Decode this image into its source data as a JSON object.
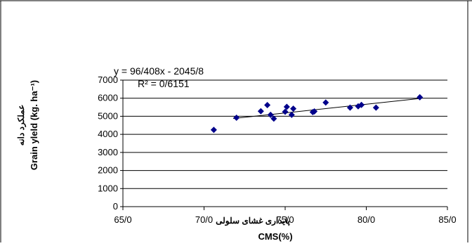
{
  "chart_data": {
    "type": "scatter",
    "x_axis": {
      "min": 65,
      "max": 85,
      "ticks": [
        65,
        70,
        75,
        80,
        85
      ],
      "tick_labels": [
        "65/0",
        "70/0",
        "75/0",
        "80/0",
        "85/0"
      ],
      "label": "CMS(%)",
      "label_fa": "پایداری غشای سلولی"
    },
    "y_axis": {
      "min": 0,
      "max": 7000,
      "ticks": [
        0,
        1000,
        2000,
        3000,
        4000,
        5000,
        6000,
        7000
      ],
      "tick_labels": [
        "0",
        "1000",
        "2000",
        "3000",
        "4000",
        "5000",
        "6000",
        "7000"
      ],
      "label": "Grain yleld (kg. ha⁻¹)",
      "label_fa": "عملکرد دانه"
    },
    "grid": "horizontal",
    "marker_color": "#00008b",
    "points": [
      {
        "x": 70.6,
        "y": 4250
      },
      {
        "x": 72.0,
        "y": 4920
      },
      {
        "x": 73.5,
        "y": 5280
      },
      {
        "x": 73.9,
        "y": 5620
      },
      {
        "x": 74.1,
        "y": 5080
      },
      {
        "x": 74.3,
        "y": 4870
      },
      {
        "x": 75.0,
        "y": 5250
      },
      {
        "x": 75.1,
        "y": 5520
      },
      {
        "x": 75.4,
        "y": 5080
      },
      {
        "x": 75.5,
        "y": 5420
      },
      {
        "x": 76.7,
        "y": 5230
      },
      {
        "x": 76.8,
        "y": 5270
      },
      {
        "x": 77.5,
        "y": 5760
      },
      {
        "x": 79.0,
        "y": 5480
      },
      {
        "x": 79.5,
        "y": 5550
      },
      {
        "x": 79.7,
        "y": 5630
      },
      {
        "x": 80.6,
        "y": 5480
      },
      {
        "x": 83.3,
        "y": 6050
      }
    ],
    "trendline": {
      "x_from": 71.8,
      "x_to": 83.3,
      "equation": "y = 96/408x - 2045/8",
      "r_squared": "R² = 0/6151"
    }
  }
}
